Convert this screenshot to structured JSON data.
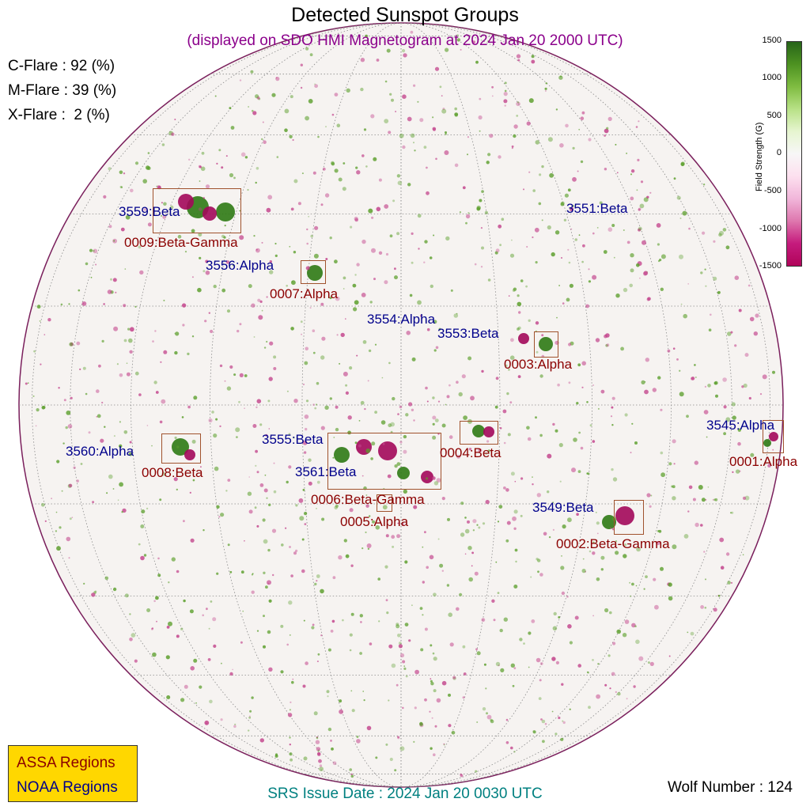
{
  "header": {
    "title": "Detected Sunspot Groups",
    "subtitle": "(displayed on SDO HMI Magnetogram at 2024 Jan 20 2000 UTC)"
  },
  "flare_probabilities": [
    {
      "label": "C-Flare : 92 (%)"
    },
    {
      "label": "M-Flare : 39 (%)"
    },
    {
      "label": "X-Flare :  2 (%)"
    }
  ],
  "noaa_regions": [
    {
      "label": "3559:Beta"
    },
    {
      "label": "3551:Beta"
    },
    {
      "label": "3556:Alpha"
    },
    {
      "label": "3554:Alpha"
    },
    {
      "label": "3553:Beta"
    },
    {
      "label": "3560:Alpha"
    },
    {
      "label": "3555:Beta"
    },
    {
      "label": "3561:Beta"
    },
    {
      "label": "3545:Alpha"
    },
    {
      "label": "3549:Beta"
    }
  ],
  "assa_regions": [
    {
      "label": "0009:Beta-Gamma"
    },
    {
      "label": "0007:Alpha"
    },
    {
      "label": "0003:Alpha"
    },
    {
      "label": "0008:Beta"
    },
    {
      "label": "0004:Beta"
    },
    {
      "label": "0006:Beta-Gamma"
    },
    {
      "label": "0005:Alpha"
    },
    {
      "label": "0001:Alpha"
    },
    {
      "label": "0002:Beta-Gamma"
    }
  ],
  "legend": {
    "assa": "ASSA Regions",
    "noaa": "NOAA Regions",
    "assa_color": "#8b0000",
    "noaa_color": "#00008b",
    "background": "#ffd700"
  },
  "footer": {
    "srs_issue": "SRS Issue Date : 2024 Jan 20 0030 UTC",
    "wolf_number": "Wolf Number : 124"
  },
  "colorbar": {
    "label": "Field Strength (G)",
    "ticks": [
      "1500",
      "1000",
      "500",
      "0",
      "-500",
      "-1000",
      "-1500"
    ],
    "positive_color": "#276419",
    "negative_color": "#b0045a"
  }
}
